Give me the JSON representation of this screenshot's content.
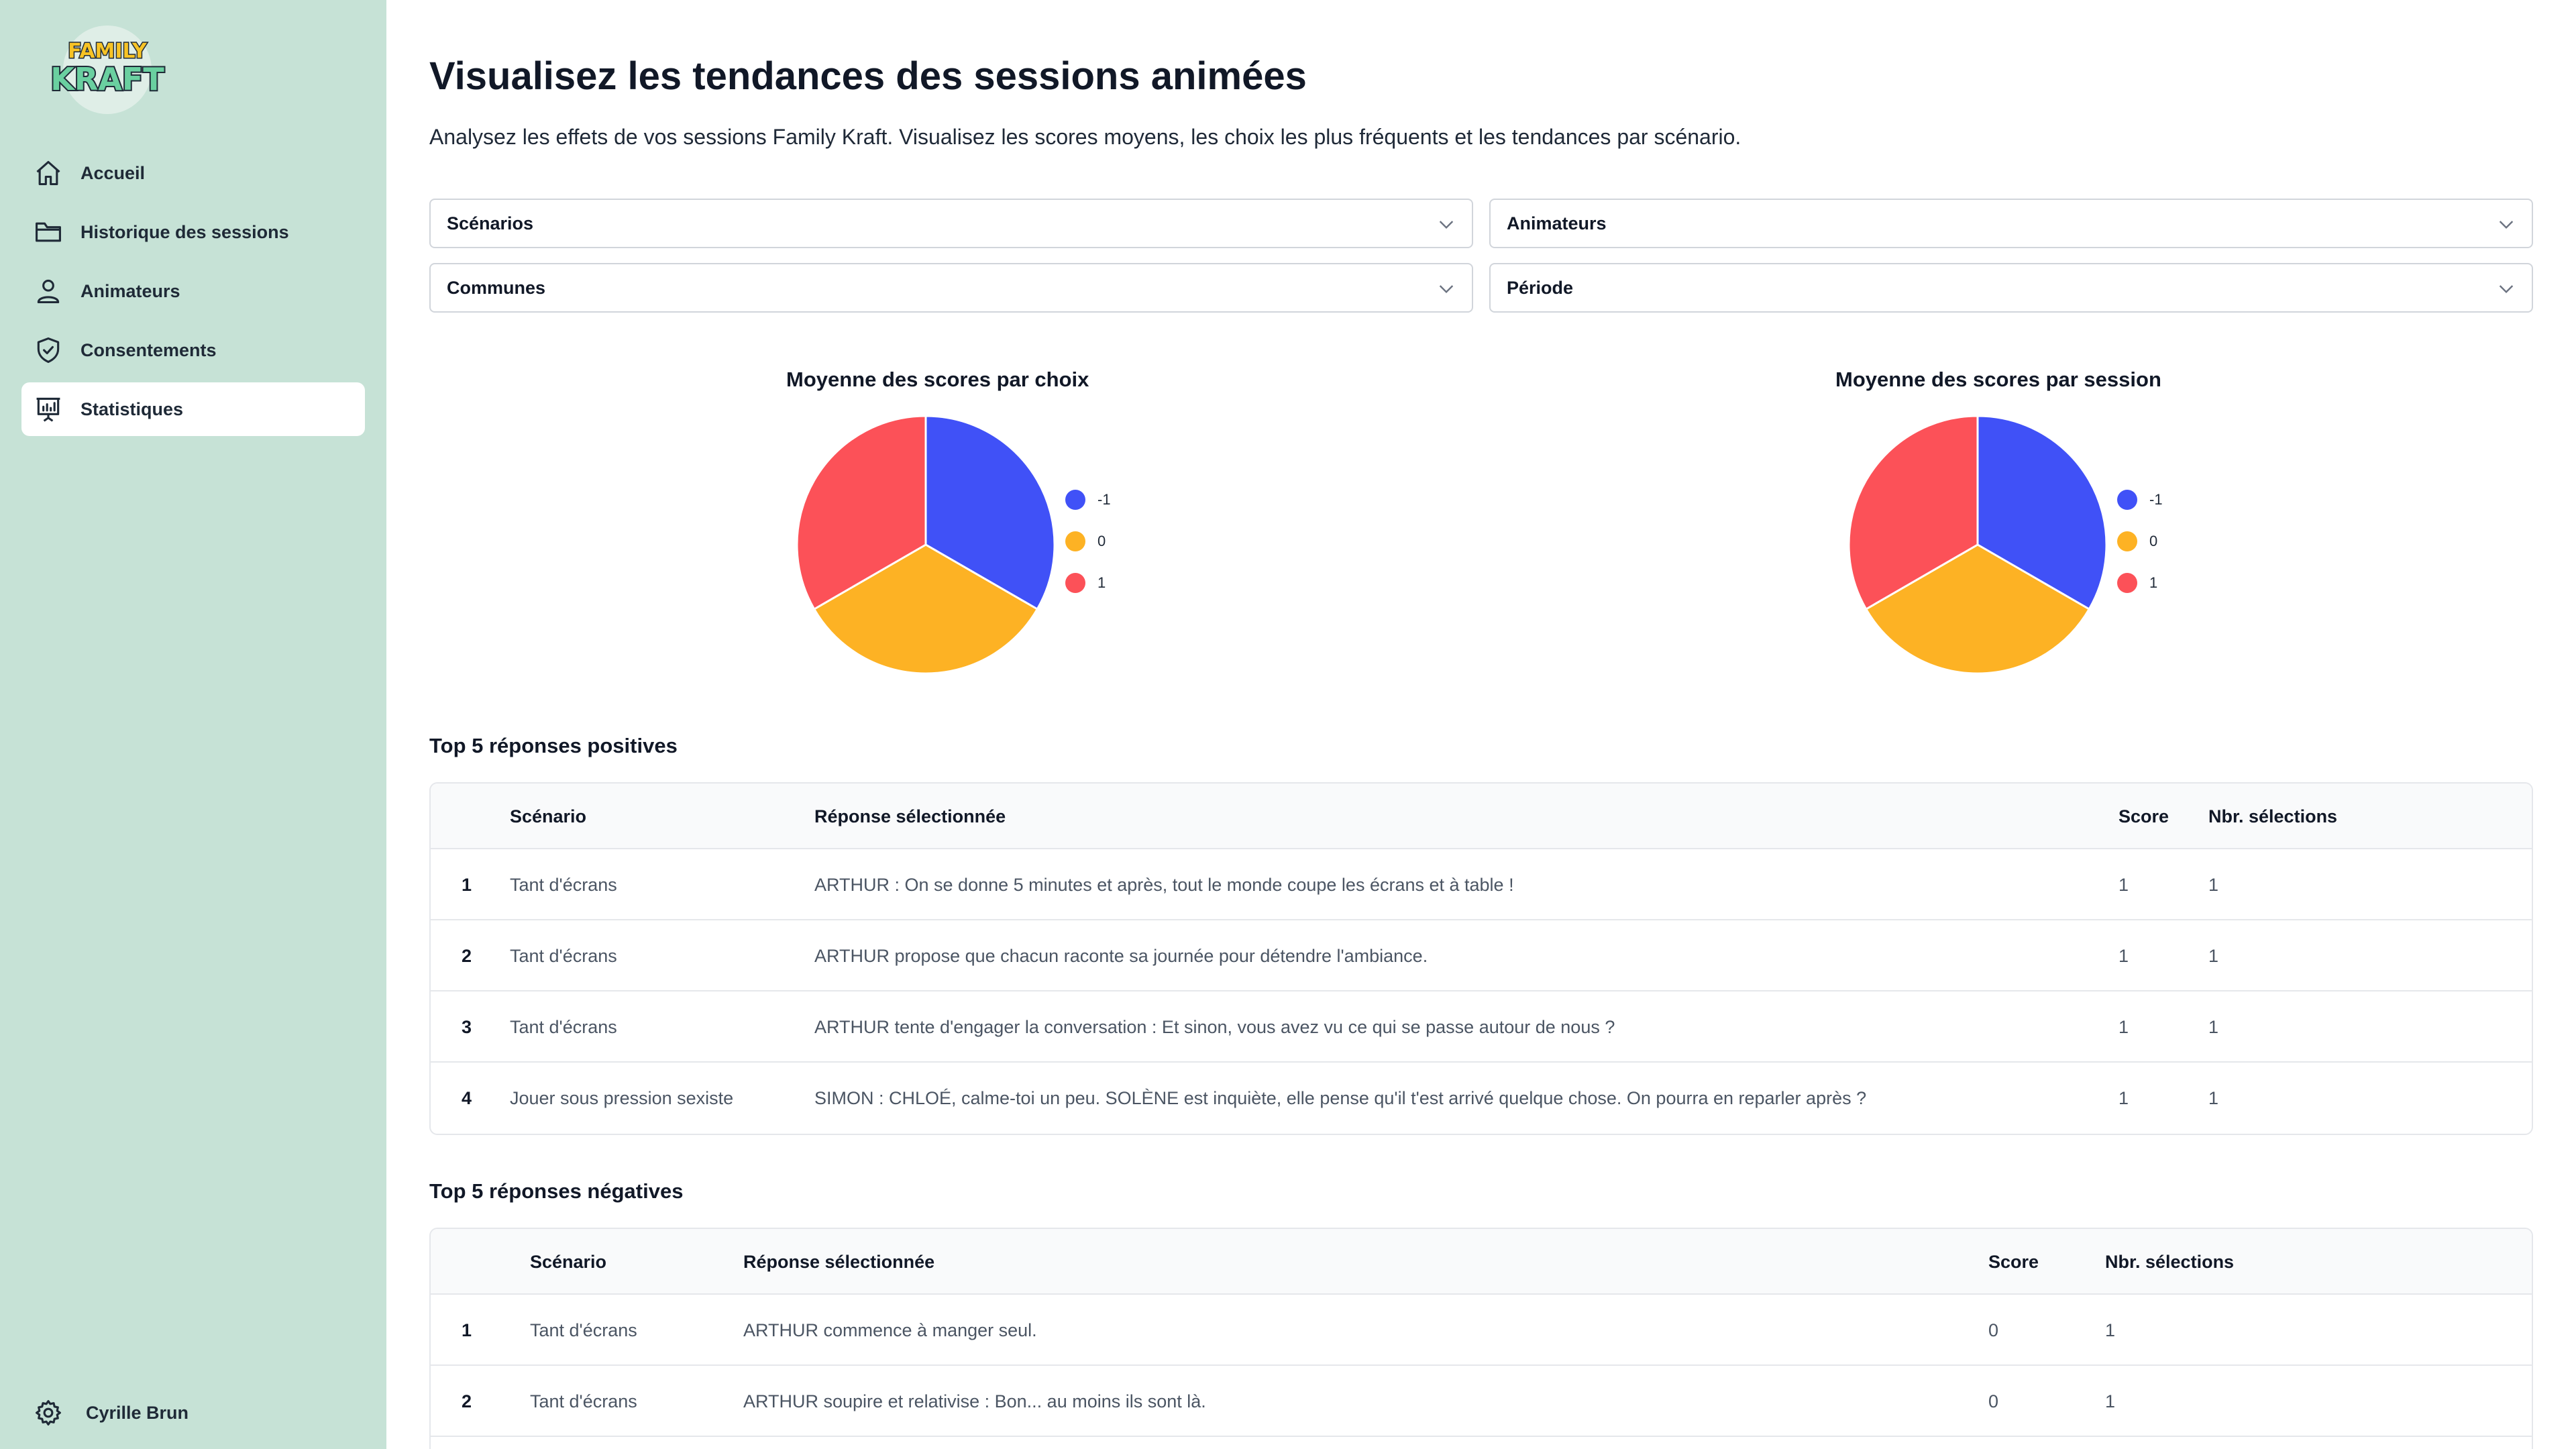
{
  "brand": {
    "line1": "FAMILY",
    "line2": "KRAFT"
  },
  "nav": [
    {
      "label": "Accueil",
      "icon": "home-icon"
    },
    {
      "label": "Historique des sessions",
      "icon": "folder-icon"
    },
    {
      "label": "Animateurs",
      "icon": "user-icon"
    },
    {
      "label": "Consentements",
      "icon": "shield-check-icon"
    },
    {
      "label": "Statistiques",
      "icon": "presentation-chart-icon",
      "active": true
    }
  ],
  "user": {
    "name": "Cyrille Brun",
    "icon": "gear-icon"
  },
  "page": {
    "title": "Visualisez les tendances des sessions animées",
    "subtitle": "Analysez les effets de vos sessions Family Kraft. Visualisez les scores moyens, les choix les plus fréquents et les tendances par scénario."
  },
  "filters": {
    "scenarios": "Scénarios",
    "animateurs": "Animateurs",
    "communes": "Communes",
    "periode": "Période"
  },
  "colors": {
    "blue": "#4051f7",
    "yellow": "#fdb224",
    "red": "#fc5158",
    "sidebar": "#c6e2d6"
  },
  "chart_data": [
    {
      "type": "pie",
      "title": "Moyenne des scores par choix",
      "categories": [
        "-1",
        "0",
        "1"
      ],
      "values": [
        1,
        1,
        1
      ],
      "colors": [
        "#4051f7",
        "#fdb224",
        "#fc5158"
      ],
      "legend": "right"
    },
    {
      "type": "pie",
      "title": "Moyenne des scores par session",
      "categories": [
        "-1",
        "0",
        "1"
      ],
      "values": [
        1,
        1,
        1
      ],
      "colors": [
        "#4051f7",
        "#fdb224",
        "#fc5158"
      ],
      "legend": "right"
    }
  ],
  "positive": {
    "title": "Top 5 réponses positives",
    "headers": {
      "scenario": "Scénario",
      "reponse": "Réponse sélectionnée",
      "score": "Score",
      "nbr": "Nbr. sélections"
    },
    "rows": [
      {
        "idx": "1",
        "scenario": "Tant d'écrans",
        "reponse": "ARTHUR : On se donne 5 minutes et après, tout le monde coupe les écrans et à table !",
        "score": "1",
        "nbr": "1"
      },
      {
        "idx": "2",
        "scenario": "Tant d'écrans",
        "reponse": "ARTHUR propose que chacun raconte sa journée pour détendre l'ambiance.",
        "score": "1",
        "nbr": "1"
      },
      {
        "idx": "3",
        "scenario": "Tant d'écrans",
        "reponse": "ARTHUR tente d'engager la conversation : Et sinon, vous avez vu ce qui se passe autour de nous ?",
        "score": "1",
        "nbr": "1"
      },
      {
        "idx": "4",
        "scenario": "Jouer sous pression sexiste",
        "reponse": "SIMON : CHLOÉ, calme-toi un peu. SOLÈNE est inquiète, elle pense qu'il t'est arrivé quelque chose. On pourra en reparler après ?",
        "score": "1",
        "nbr": "1"
      }
    ]
  },
  "negative": {
    "title": "Top 5 réponses négatives",
    "headers": {
      "scenario": "Scénario",
      "reponse": "Réponse sélectionnée",
      "score": "Score",
      "nbr": "Nbr. sélections"
    },
    "rows": [
      {
        "idx": "1",
        "scenario": "Tant d'écrans",
        "reponse": "ARTHUR commence à manger seul.",
        "score": "0",
        "nbr": "1"
      },
      {
        "idx": "2",
        "scenario": "Tant d'écrans",
        "reponse": "ARTHUR soupire et relativise : Bon... au moins ils sont là.",
        "score": "0",
        "nbr": "1"
      }
    ]
  }
}
